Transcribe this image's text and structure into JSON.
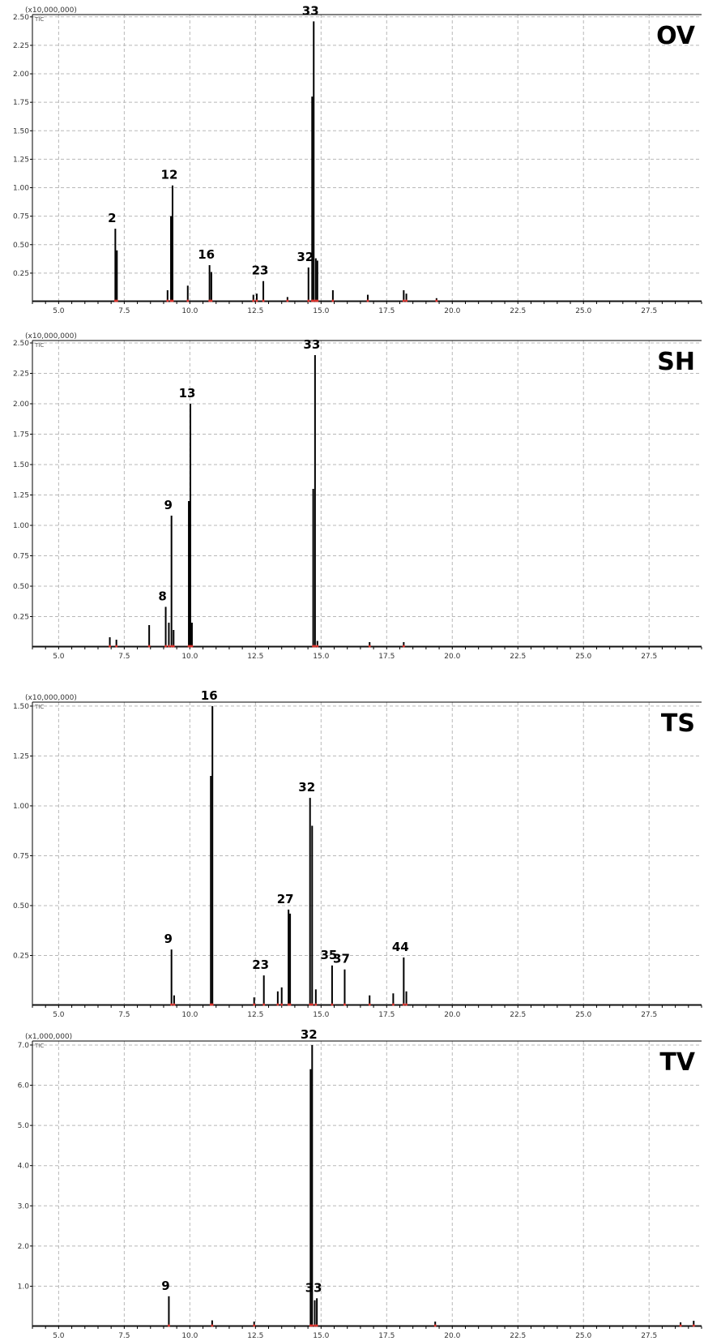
{
  "chart_data": [
    {
      "type": "line",
      "title": "OV",
      "scale_label": "(x10,000,000)",
      "signal_label": "TIC",
      "xlim": [
        4.0,
        29.5
      ],
      "x_ticks": [
        "5.0",
        "7.5",
        "10.0",
        "12.5",
        "15.0",
        "17.5",
        "20.0",
        "22.5",
        "25.0",
        "27.5"
      ],
      "x_tick_values": [
        5.0,
        7.5,
        10.0,
        12.5,
        15.0,
        17.5,
        20.0,
        22.5,
        25.0,
        27.5
      ],
      "ylim": [
        0,
        2.52
      ],
      "y_ticks": [
        "0.25",
        "0.50",
        "0.75",
        "1.00",
        "1.25",
        "1.50",
        "1.75",
        "2.00",
        "2.25",
        "2.50"
      ],
      "y_tick_values": [
        0.25,
        0.5,
        0.75,
        1.0,
        1.25,
        1.5,
        1.75,
        2.0,
        2.25,
        2.5
      ],
      "grid": true,
      "peaks": [
        {
          "x": 7.16,
          "y": 0.64,
          "label": "2"
        },
        {
          "x": 7.22,
          "y": 0.45,
          "label": ""
        },
        {
          "x": 9.15,
          "y": 0.1,
          "label": ""
        },
        {
          "x": 9.28,
          "y": 0.75,
          "label": ""
        },
        {
          "x": 9.34,
          "y": 1.02,
          "label": "12"
        },
        {
          "x": 9.92,
          "y": 0.14,
          "label": ""
        },
        {
          "x": 10.75,
          "y": 0.32,
          "label": "16"
        },
        {
          "x": 10.82,
          "y": 0.26,
          "label": ""
        },
        {
          "x": 12.42,
          "y": 0.06,
          "label": ""
        },
        {
          "x": 12.55,
          "y": 0.07,
          "label": ""
        },
        {
          "x": 12.8,
          "y": 0.18,
          "label": "23"
        },
        {
          "x": 13.72,
          "y": 0.04,
          "label": ""
        },
        {
          "x": 14.52,
          "y": 0.3,
          "label": "32"
        },
        {
          "x": 14.66,
          "y": 1.8,
          "label": ""
        },
        {
          "x": 14.72,
          "y": 2.46,
          "label": "33"
        },
        {
          "x": 14.8,
          "y": 0.38,
          "label": ""
        },
        {
          "x": 14.86,
          "y": 0.36,
          "label": ""
        },
        {
          "x": 15.45,
          "y": 0.1,
          "label": ""
        },
        {
          "x": 16.78,
          "y": 0.06,
          "label": ""
        },
        {
          "x": 18.15,
          "y": 0.1,
          "label": ""
        },
        {
          "x": 18.25,
          "y": 0.07,
          "label": ""
        },
        {
          "x": 19.4,
          "y": 0.03,
          "label": ""
        }
      ]
    },
    {
      "type": "line",
      "title": "SH",
      "scale_label": "(x10,000,000)",
      "signal_label": "TIC",
      "xlim": [
        4.0,
        29.5
      ],
      "x_ticks": [
        "5.0",
        "7.5",
        "10.0",
        "12.5",
        "15.0",
        "17.5",
        "20.0",
        "22.5",
        "25.0",
        "27.5"
      ],
      "x_tick_values": [
        5.0,
        7.5,
        10.0,
        12.5,
        15.0,
        17.5,
        20.0,
        22.5,
        25.0,
        27.5
      ],
      "ylim": [
        0,
        2.52
      ],
      "y_ticks": [
        "0.25",
        "0.50",
        "0.75",
        "1.00",
        "1.25",
        "1.50",
        "1.75",
        "2.00",
        "2.25",
        "2.50"
      ],
      "y_tick_values": [
        0.25,
        0.5,
        0.75,
        1.0,
        1.25,
        1.5,
        1.75,
        2.0,
        2.25,
        2.5
      ],
      "grid": true,
      "peaks": [
        {
          "x": 6.95,
          "y": 0.08,
          "label": ""
        },
        {
          "x": 7.2,
          "y": 0.06,
          "label": ""
        },
        {
          "x": 8.45,
          "y": 0.18,
          "label": ""
        },
        {
          "x": 9.08,
          "y": 0.33,
          "label": "8"
        },
        {
          "x": 9.2,
          "y": 0.2,
          "label": ""
        },
        {
          "x": 9.3,
          "y": 1.08,
          "label": "9"
        },
        {
          "x": 9.38,
          "y": 0.14,
          "label": ""
        },
        {
          "x": 9.96,
          "y": 1.2,
          "label": ""
        },
        {
          "x": 10.02,
          "y": 2.0,
          "label": "13"
        },
        {
          "x": 10.08,
          "y": 0.2,
          "label": ""
        },
        {
          "x": 14.7,
          "y": 1.3,
          "label": ""
        },
        {
          "x": 14.77,
          "y": 2.4,
          "label": "33"
        },
        {
          "x": 14.86,
          "y": 0.05,
          "label": ""
        },
        {
          "x": 16.85,
          "y": 0.04,
          "label": ""
        },
        {
          "x": 18.15,
          "y": 0.04,
          "label": ""
        }
      ]
    },
    {
      "type": "line",
      "title": "TS",
      "scale_label": "(x10,000,000)",
      "signal_label": "TIC",
      "xlim": [
        4.0,
        29.5
      ],
      "x_ticks": [
        "5.0",
        "7.5",
        "10.0",
        "12.5",
        "15.0",
        "17.5",
        "20.0",
        "22.5",
        "25.0",
        "27.5"
      ],
      "x_tick_values": [
        5.0,
        7.5,
        10.0,
        12.5,
        15.0,
        17.5,
        20.0,
        22.5,
        25.0,
        27.5
      ],
      "ylim": [
        0,
        1.52
      ],
      "y_ticks": [
        "0.25",
        "0.50",
        "0.75",
        "1.00",
        "1.25",
        "1.50"
      ],
      "y_tick_values": [
        0.25,
        0.5,
        0.75,
        1.0,
        1.25,
        1.5
      ],
      "grid": true,
      "peaks": [
        {
          "x": 9.3,
          "y": 0.28,
          "label": "9"
        },
        {
          "x": 9.4,
          "y": 0.05,
          "label": ""
        },
        {
          "x": 10.8,
          "y": 1.15,
          "label": ""
        },
        {
          "x": 10.86,
          "y": 1.5,
          "label": "16"
        },
        {
          "x": 12.45,
          "y": 0.04,
          "label": ""
        },
        {
          "x": 12.82,
          "y": 0.15,
          "label": "23"
        },
        {
          "x": 13.35,
          "y": 0.07,
          "label": ""
        },
        {
          "x": 13.5,
          "y": 0.09,
          "label": ""
        },
        {
          "x": 13.76,
          "y": 0.48,
          "label": "27"
        },
        {
          "x": 13.82,
          "y": 0.46,
          "label": ""
        },
        {
          "x": 14.58,
          "y": 1.04,
          "label": "32"
        },
        {
          "x": 14.66,
          "y": 0.9,
          "label": ""
        },
        {
          "x": 14.8,
          "y": 0.08,
          "label": ""
        },
        {
          "x": 15.42,
          "y": 0.2,
          "label": "35"
        },
        {
          "x": 15.9,
          "y": 0.18,
          "label": "37"
        },
        {
          "x": 16.85,
          "y": 0.05,
          "label": ""
        },
        {
          "x": 17.75,
          "y": 0.06,
          "label": ""
        },
        {
          "x": 18.15,
          "y": 0.24,
          "label": "44"
        },
        {
          "x": 18.25,
          "y": 0.07,
          "label": ""
        }
      ]
    },
    {
      "type": "line",
      "title": "TV",
      "scale_label": "(x1,000,000)",
      "signal_label": "TIC",
      "xlim": [
        4.0,
        29.5
      ],
      "x_ticks": [
        "5.0",
        "7.5",
        "10.0",
        "12.5",
        "15.0",
        "17.5",
        "20.0",
        "22.5",
        "25.0",
        "27.5"
      ],
      "x_tick_values": [
        5.0,
        7.5,
        10.0,
        12.5,
        15.0,
        17.5,
        20.0,
        22.5,
        25.0,
        27.5
      ],
      "ylim": [
        0,
        7.1
      ],
      "y_ticks": [
        "1.0",
        "2.0",
        "3.0",
        "4.0",
        "5.0",
        "6.0",
        "7.0"
      ],
      "y_tick_values": [
        1.0,
        2.0,
        3.0,
        4.0,
        5.0,
        6.0,
        7.0
      ],
      "grid": true,
      "peaks": [
        {
          "x": 9.2,
          "y": 0.75,
          "label": "9"
        },
        {
          "x": 10.85,
          "y": 0.15,
          "label": ""
        },
        {
          "x": 12.45,
          "y": 0.12,
          "label": ""
        },
        {
          "x": 14.6,
          "y": 6.4,
          "label": ""
        },
        {
          "x": 14.66,
          "y": 7.0,
          "label": "32"
        },
        {
          "x": 14.76,
          "y": 0.65,
          "label": ""
        },
        {
          "x": 14.84,
          "y": 0.7,
          "label": "33"
        },
        {
          "x": 19.35,
          "y": 0.12,
          "label": ""
        },
        {
          "x": 28.7,
          "y": 0.1,
          "label": ""
        },
        {
          "x": 29.2,
          "y": 0.14,
          "label": ""
        }
      ]
    }
  ]
}
